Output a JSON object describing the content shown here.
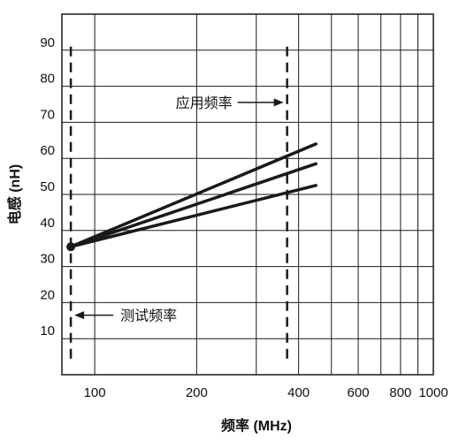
{
  "chart_data": {
    "type": "line",
    "title": "",
    "xlabel": "频率 (MHz)",
    "ylabel": "电感 (nH)",
    "xscale": "log",
    "xlim": [
      80,
      1000
    ],
    "ylim": [
      0,
      100
    ],
    "x_ticks": [
      {
        "value": 100,
        "label": "100"
      },
      {
        "value": 200,
        "label": "200"
      },
      {
        "value": 400,
        "label": "400"
      },
      {
        "value": 600,
        "label": "600"
      },
      {
        "value": 800,
        "label": "800"
      },
      {
        "value": 1000,
        "label": "1000"
      }
    ],
    "y_ticks": [
      {
        "value": 10,
        "label": "10"
      },
      {
        "value": 20,
        "label": "20"
      },
      {
        "value": 30,
        "label": "30"
      },
      {
        "value": 40,
        "label": "40"
      },
      {
        "value": 50,
        "label": "50"
      },
      {
        "value": 60,
        "label": "60"
      },
      {
        "value": 70,
        "label": "70"
      },
      {
        "value": 80,
        "label": "80"
      },
      {
        "value": 90,
        "label": "90"
      }
    ],
    "x_gridlines": [
      100,
      200,
      300,
      400,
      500,
      600,
      700,
      800,
      900,
      1000
    ],
    "y_gridlines": [
      10,
      20,
      30,
      40,
      50,
      60,
      70,
      80,
      90
    ],
    "grid": true,
    "series": [
      {
        "x": [
          85,
          450
        ],
        "y": [
          35.5,
          64
        ]
      },
      {
        "x": [
          85,
          450
        ],
        "y": [
          35.5,
          58.5
        ]
      },
      {
        "x": [
          85,
          450
        ],
        "y": [
          35.5,
          52.5
        ]
      }
    ],
    "start_point": {
      "x": 85,
      "y": 35.5
    },
    "vertical_markers": [
      {
        "x": 85,
        "y_range": [
          0,
          91
        ]
      },
      {
        "x": 370,
        "y_range": [
          0,
          91
        ]
      }
    ],
    "annotations": [
      {
        "text": "应用频率",
        "arrow_to": {
          "x": 370,
          "y": 76
        }
      },
      {
        "text": "测试频率",
        "arrow_to": {
          "x": 85,
          "y": 17
        }
      }
    ],
    "colors": {
      "lines": "#1a1a1a",
      "grid": "#1a1a1a",
      "background": "#ffffff"
    }
  }
}
